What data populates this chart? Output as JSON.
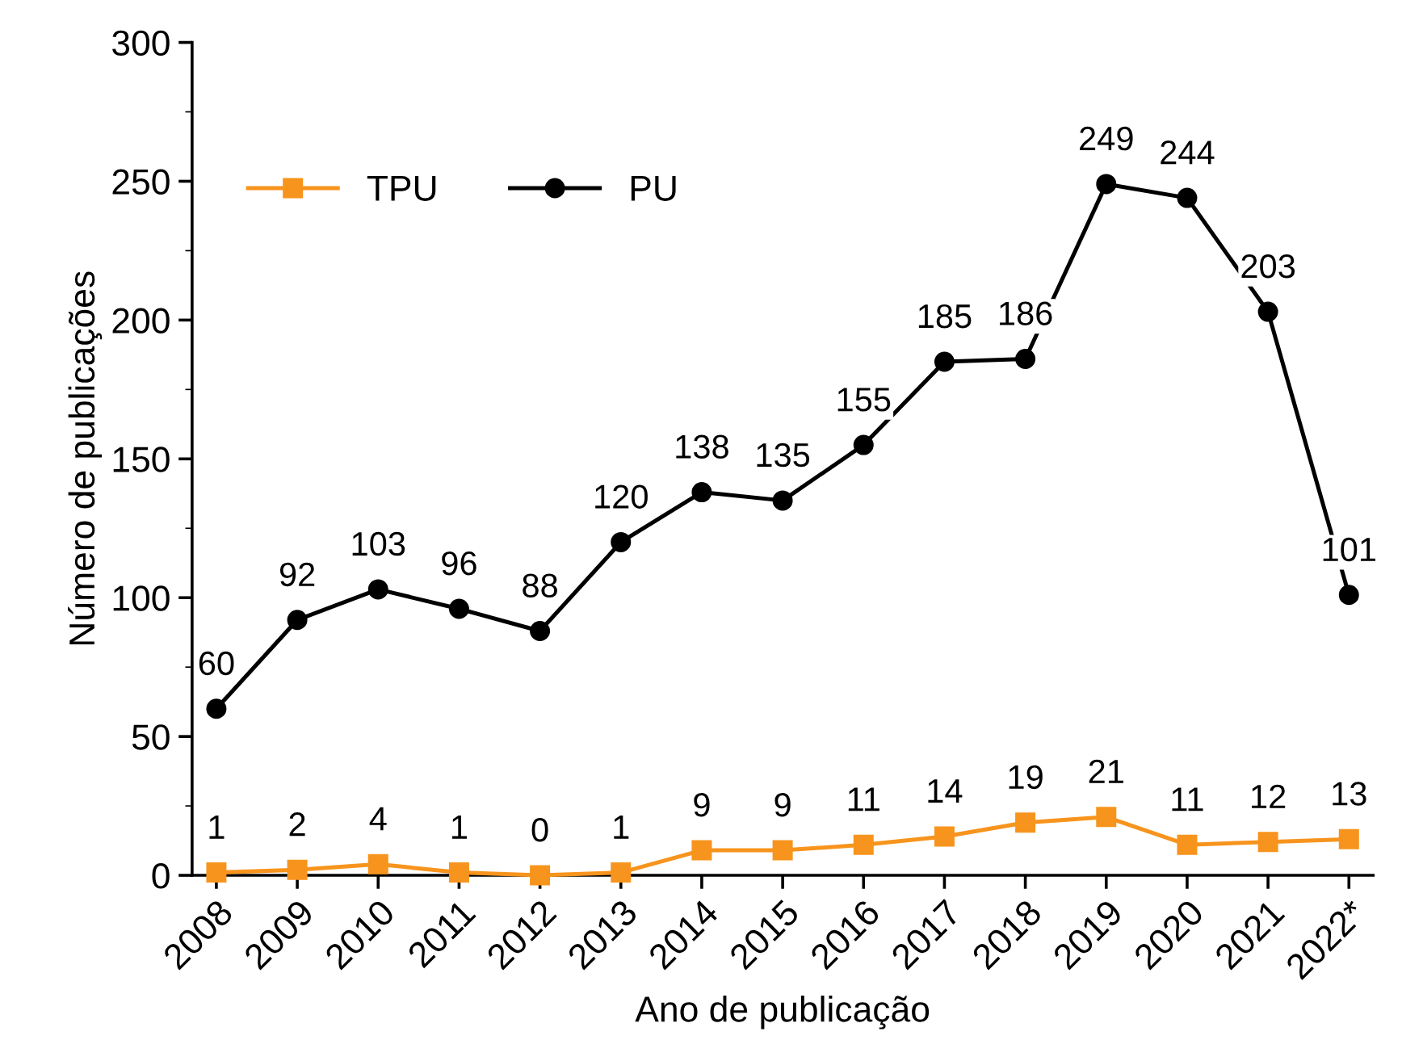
{
  "chart_data": {
    "type": "line",
    "xlabel": "Ano de publicação",
    "ylabel": "Número de publicações",
    "categories": [
      "2008",
      "2009",
      "2010",
      "2011",
      "2012",
      "2013",
      "2014",
      "2015",
      "2016",
      "2017",
      "2018",
      "2019",
      "2020",
      "2021",
      "2022*"
    ],
    "series": [
      {
        "name": "TPU",
        "color": "#f7941d",
        "marker": "square",
        "values": [
          1,
          2,
          4,
          1,
          0,
          1,
          9,
          9,
          11,
          14,
          19,
          21,
          11,
          12,
          13
        ]
      },
      {
        "name": "PU",
        "color": "#000000",
        "marker": "circle",
        "values": [
          60,
          92,
          103,
          96,
          88,
          120,
          138,
          135,
          155,
          185,
          186,
          249,
          244,
          203,
          101
        ]
      }
    ],
    "ylim": [
      0,
      300
    ],
    "yticks": [
      0,
      50,
      100,
      150,
      200,
      250,
      300
    ],
    "data_labels": true,
    "legend": "top left",
    "grid": false,
    "line_style": "solid"
  }
}
